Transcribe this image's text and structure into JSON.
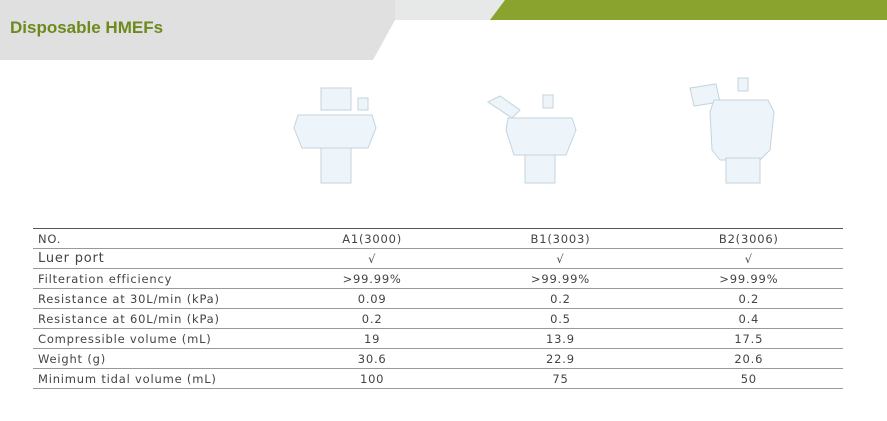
{
  "header": {
    "title": "Disposable HMEFs"
  },
  "table": {
    "rows": [
      [
        "NO.",
        "A1(3000)",
        "B1(3003)",
        "B2(3006)"
      ],
      [
        "Luer port",
        "√",
        "√",
        "√"
      ],
      [
        "Filteration efficiency",
        ">99.99%",
        ">99.99%",
        ">99.99%"
      ],
      [
        "Resistance at 30L/min (kPa)",
        "0.09",
        "0.2",
        "0.2"
      ],
      [
        "Resistance at 60L/min (kPa)",
        "0.2",
        "0.5",
        "0.4"
      ],
      [
        "Compressible volume (mL)",
        "19",
        "13.9",
        "17.5"
      ],
      [
        "Weight (g)",
        "30.6",
        "22.9",
        "20.6"
      ],
      [
        "Minimum tidal volume (mL)",
        "100",
        "75",
        "50"
      ]
    ]
  }
}
